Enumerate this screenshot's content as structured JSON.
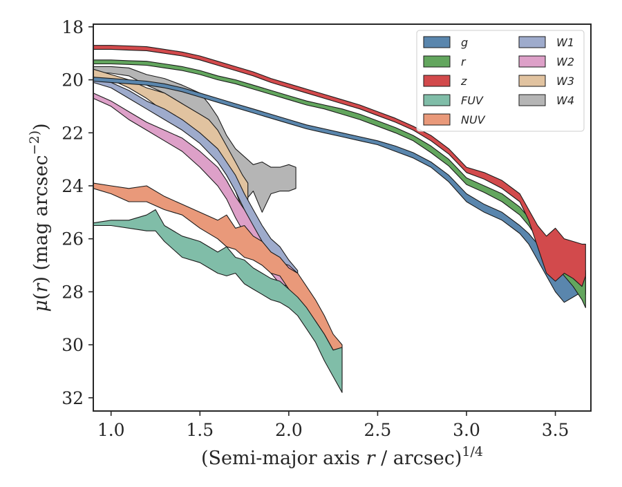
{
  "chart_data": {
    "type": "area",
    "title": "",
    "xlabel": "(Semi-major axis r / arcsec)^1/4",
    "ylabel": "μ(r) (mag arcsec^−2)",
    "xlim": [
      0.9,
      3.7
    ],
    "ylim": [
      32.5,
      17.9
    ],
    "y_inverted": true,
    "xticks": [
      "1.0",
      "1.5",
      "2.0",
      "2.5",
      "3.0",
      "3.5"
    ],
    "yticks": [
      "18",
      "20",
      "22",
      "24",
      "26",
      "28",
      "30",
      "32"
    ],
    "grid": false,
    "legend": {
      "position": "top-right",
      "columns": 2
    },
    "series": [
      {
        "name": "W4",
        "color": "#b5b5b5",
        "x": [
          0.9,
          1.0,
          1.1,
          1.2,
          1.3,
          1.4,
          1.5,
          1.55,
          1.6,
          1.65,
          1.7,
          1.75,
          1.8,
          1.85,
          1.9,
          1.95,
          2.0,
          2.04
        ],
        "y_upper": [
          19.5,
          19.5,
          19.55,
          19.8,
          19.95,
          20.2,
          20.5,
          20.9,
          21.4,
          22.1,
          22.6,
          22.9,
          23.2,
          23.1,
          23.3,
          23.3,
          23.2,
          23.3
        ],
        "y_lower": [
          19.7,
          19.75,
          19.85,
          20.2,
          20.5,
          20.9,
          21.7,
          22.3,
          22.8,
          23.4,
          24.2,
          24.6,
          24.2,
          25.0,
          24.3,
          24.2,
          24.2,
          24.1
        ]
      },
      {
        "name": "W3",
        "color": "#e1c3a0",
        "x": [
          0.9,
          1.0,
          1.1,
          1.2,
          1.3,
          1.4,
          1.5,
          1.55,
          1.6,
          1.65,
          1.7,
          1.74,
          1.77
        ],
        "y_upper": [
          19.6,
          19.8,
          20.0,
          20.3,
          20.5,
          20.9,
          21.3,
          21.5,
          21.9,
          22.5,
          23.1,
          23.6,
          23.9
        ],
        "y_lower": [
          19.9,
          20.0,
          20.3,
          20.7,
          21.2,
          21.7,
          22.2,
          22.6,
          23.1,
          23.6,
          24.2,
          24.9,
          25.0
        ]
      },
      {
        "name": "W1",
        "color": "#9eabcc",
        "x": [
          0.9,
          1.0,
          1.1,
          1.2,
          1.3,
          1.4,
          1.5,
          1.6,
          1.65,
          1.7,
          1.75,
          1.8,
          1.85,
          1.9,
          1.95,
          2.0,
          2.05
        ],
        "y_upper": [
          19.9,
          20.1,
          20.4,
          20.8,
          21.1,
          21.5,
          22.0,
          22.6,
          23.1,
          23.6,
          24.3,
          24.9,
          25.5,
          26.0,
          26.3,
          26.8,
          27.2
        ],
        "y_lower": [
          20.1,
          20.3,
          20.7,
          21.1,
          21.5,
          21.9,
          22.4,
          23.1,
          23.6,
          24.2,
          24.9,
          25.6,
          26.3,
          26.7,
          27.1,
          27.5,
          27.7
        ]
      },
      {
        "name": "W2",
        "color": "#dda0c8",
        "x": [
          0.9,
          1.0,
          1.1,
          1.2,
          1.3,
          1.4,
          1.5,
          1.6,
          1.65,
          1.7,
          1.75,
          1.8,
          1.85,
          1.9,
          1.95,
          2.0,
          2.05
        ],
        "y_upper": [
          20.5,
          20.8,
          21.2,
          21.6,
          21.9,
          22.2,
          22.7,
          23.3,
          23.8,
          24.4,
          24.9,
          25.5,
          26.1,
          26.6,
          26.9,
          27.0,
          27.3
        ],
        "y_lower": [
          20.7,
          21.0,
          21.5,
          21.9,
          22.3,
          22.7,
          23.3,
          24.0,
          24.5,
          25.2,
          25.8,
          26.5,
          26.9,
          27.3,
          27.7,
          27.8,
          27.6
        ]
      },
      {
        "name": "NUV",
        "color": "#e9997a",
        "x": [
          0.9,
          1.0,
          1.1,
          1.2,
          1.3,
          1.4,
          1.5,
          1.6,
          1.65,
          1.7,
          1.75,
          1.8,
          1.85,
          1.9,
          1.95,
          2.0,
          2.05,
          2.1,
          2.15,
          2.2,
          2.25,
          2.3
        ],
        "y_upper": [
          23.9,
          24.0,
          24.1,
          24.0,
          24.4,
          24.7,
          25.0,
          25.3,
          25.1,
          25.6,
          25.5,
          25.9,
          26.1,
          26.5,
          26.7,
          27.1,
          27.3,
          27.8,
          28.3,
          28.9,
          29.6,
          30.0
        ],
        "y_lower": [
          24.1,
          24.3,
          24.6,
          24.6,
          24.9,
          25.1,
          25.6,
          26.0,
          26.3,
          26.4,
          26.7,
          26.8,
          27.0,
          27.3,
          27.4,
          27.9,
          28.3,
          28.7,
          29.1,
          29.6,
          30.2,
          31.5
        ]
      },
      {
        "name": "FUV",
        "color": "#80bda8",
        "x": [
          0.9,
          1.0,
          1.1,
          1.2,
          1.25,
          1.3,
          1.4,
          1.5,
          1.6,
          1.65,
          1.7,
          1.75,
          1.8,
          1.85,
          1.9,
          1.95,
          2.0,
          2.05,
          2.1,
          2.15,
          2.2,
          2.25,
          2.3
        ],
        "y_upper": [
          25.4,
          25.3,
          25.3,
          25.1,
          24.9,
          25.5,
          25.9,
          26.1,
          26.5,
          26.3,
          26.7,
          26.8,
          27.1,
          27.3,
          27.5,
          27.6,
          27.9,
          28.2,
          28.6,
          29.1,
          29.6,
          30.2,
          30.1
        ],
        "y_lower": [
          25.5,
          25.5,
          25.6,
          25.7,
          25.7,
          26.1,
          26.7,
          26.9,
          27.3,
          27.4,
          27.3,
          27.7,
          27.9,
          28.1,
          28.3,
          28.4,
          28.6,
          28.9,
          29.4,
          29.9,
          30.6,
          31.2,
          31.8
        ]
      },
      {
        "name": "g",
        "color": "#5a86ad",
        "x": [
          0.9,
          1.0,
          1.1,
          1.2,
          1.3,
          1.4,
          1.5,
          1.6,
          1.7,
          1.8,
          1.9,
          2.0,
          2.1,
          2.2,
          2.3,
          2.4,
          2.5,
          2.6,
          2.7,
          2.8,
          2.9,
          3.0,
          3.1,
          3.2,
          3.3,
          3.35,
          3.4,
          3.45,
          3.5,
          3.55,
          3.6,
          3.65,
          3.67
        ],
        "y_upper": [
          19.9,
          19.95,
          20.0,
          20.05,
          20.15,
          20.3,
          20.5,
          20.7,
          20.9,
          21.1,
          21.3,
          21.5,
          21.7,
          21.85,
          22.0,
          22.15,
          22.3,
          22.5,
          22.75,
          23.1,
          23.6,
          24.3,
          24.7,
          25.0,
          25.5,
          25.8,
          26.2,
          26.6,
          26.8,
          26.9,
          27.0,
          27.2,
          27.3
        ],
        "y_lower": [
          20.05,
          20.1,
          20.15,
          20.2,
          20.3,
          20.45,
          20.65,
          20.85,
          21.05,
          21.25,
          21.45,
          21.65,
          21.85,
          22.0,
          22.15,
          22.3,
          22.45,
          22.7,
          22.95,
          23.3,
          23.85,
          24.6,
          25.0,
          25.3,
          25.8,
          26.2,
          26.8,
          27.4,
          28.0,
          28.4,
          28.2,
          28.0,
          28.1
        ]
      },
      {
        "name": "r",
        "color": "#63a65e",
        "x": [
          0.9,
          1.0,
          1.1,
          1.2,
          1.3,
          1.4,
          1.5,
          1.6,
          1.7,
          1.8,
          1.9,
          2.0,
          2.1,
          2.2,
          2.3,
          2.4,
          2.5,
          2.6,
          2.7,
          2.8,
          2.9,
          3.0,
          3.1,
          3.2,
          3.3,
          3.35,
          3.4,
          3.45,
          3.5,
          3.55,
          3.6,
          3.65,
          3.67
        ],
        "y_upper": [
          19.25,
          19.25,
          19.28,
          19.3,
          19.4,
          19.5,
          19.65,
          19.85,
          20.0,
          20.2,
          20.4,
          20.6,
          20.8,
          20.95,
          21.1,
          21.3,
          21.55,
          21.8,
          22.1,
          22.5,
          23.0,
          23.7,
          24.0,
          24.3,
          24.8,
          25.2,
          25.6,
          26.1,
          26.4,
          26.6,
          26.8,
          27.0,
          27.2
        ],
        "y_lower": [
          19.4,
          19.4,
          19.42,
          19.45,
          19.55,
          19.65,
          19.8,
          20.0,
          20.15,
          20.35,
          20.55,
          20.75,
          20.95,
          21.1,
          21.3,
          21.5,
          21.75,
          22.0,
          22.3,
          22.75,
          23.25,
          23.95,
          24.25,
          24.6,
          25.1,
          25.5,
          26.0,
          26.6,
          27.0,
          27.4,
          27.8,
          28.3,
          28.6
        ]
      },
      {
        "name": "z",
        "color": "#d24a4c",
        "x": [
          0.9,
          1.0,
          1.1,
          1.2,
          1.3,
          1.4,
          1.5,
          1.6,
          1.7,
          1.8,
          1.9,
          2.0,
          2.1,
          2.2,
          2.3,
          2.4,
          2.5,
          2.6,
          2.7,
          2.8,
          2.9,
          3.0,
          3.1,
          3.2,
          3.3,
          3.35,
          3.4,
          3.45,
          3.5,
          3.55,
          3.6,
          3.65,
          3.67
        ],
        "y_upper": [
          18.7,
          18.7,
          18.72,
          18.75,
          18.85,
          18.95,
          19.1,
          19.3,
          19.5,
          19.7,
          19.95,
          20.15,
          20.35,
          20.55,
          20.75,
          20.95,
          21.2,
          21.45,
          21.75,
          22.1,
          22.6,
          23.3,
          23.5,
          23.8,
          24.3,
          24.9,
          25.5,
          25.9,
          25.6,
          26.0,
          26.1,
          26.2,
          26.2
        ],
        "y_lower": [
          18.85,
          18.85,
          18.88,
          18.9,
          19.0,
          19.1,
          19.25,
          19.45,
          19.65,
          19.85,
          20.1,
          20.3,
          20.5,
          20.7,
          20.9,
          21.1,
          21.35,
          21.6,
          21.9,
          22.3,
          22.8,
          23.5,
          23.75,
          24.1,
          24.6,
          25.3,
          26.3,
          27.3,
          27.6,
          27.3,
          27.5,
          27.8,
          27.4
        ]
      }
    ],
    "legend_entries": [
      {
        "name": "g",
        "color": "#5a86ad"
      },
      {
        "name": "r",
        "color": "#63a65e"
      },
      {
        "name": "z",
        "color": "#d24a4c"
      },
      {
        "name": "FUV",
        "color": "#80bda8"
      },
      {
        "name": "NUV",
        "color": "#e9997a"
      },
      {
        "name": "W1",
        "color": "#9eabcc"
      },
      {
        "name": "W2",
        "color": "#dda0c8"
      },
      {
        "name": "W3",
        "color": "#e1c3a0"
      },
      {
        "name": "W4",
        "color": "#b5b5b5"
      }
    ]
  }
}
